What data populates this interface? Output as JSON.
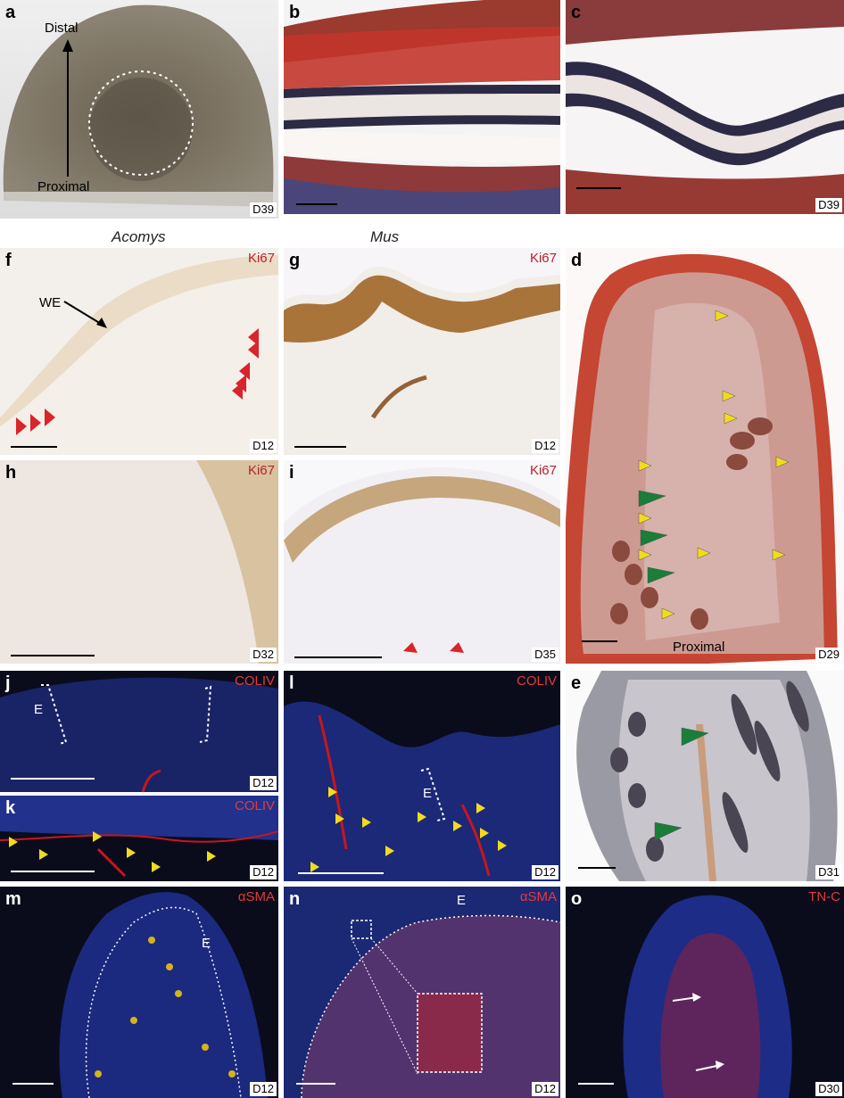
{
  "headers": {
    "acomys": "Acomys",
    "mus": "Mus"
  },
  "panels": {
    "a": {
      "letter": "a",
      "day": "D39",
      "distal": "Distal",
      "proximal": "Proximal"
    },
    "b": {
      "letter": "b"
    },
    "c": {
      "letter": "c",
      "day": "D39"
    },
    "f": {
      "letter": "f",
      "stain": "Ki67",
      "day": "D12",
      "annotation": "WE"
    },
    "g": {
      "letter": "g",
      "stain": "Ki67",
      "day": "D12"
    },
    "d": {
      "letter": "d",
      "day": "D29",
      "proximal": "Proximal"
    },
    "h": {
      "letter": "h",
      "stain": "Ki67",
      "day": "D32"
    },
    "i": {
      "letter": "i",
      "stain": "Ki67",
      "day": "D35"
    },
    "j": {
      "letter": "j",
      "stain": "COLIV",
      "day": "D12",
      "annotation": "E"
    },
    "k": {
      "letter": "k",
      "stain": "COLIV",
      "day": "D12"
    },
    "l": {
      "letter": "l",
      "stain": "COLIV",
      "day": "D12",
      "annotation": "E"
    },
    "e": {
      "letter": "e",
      "day": "D31"
    },
    "m": {
      "letter": "m",
      "stain": "αSMA",
      "day": "D12",
      "annotation": "E"
    },
    "n": {
      "letter": "n",
      "stain": "αSMA",
      "day": "D12",
      "annotation": "E"
    },
    "o": {
      "letter": "o",
      "stain": "TN-C",
      "day": "D30"
    }
  },
  "colors": {
    "stain_red": "#c8161d",
    "arrow_red": "#d8242a",
    "arrow_yellow": "#f1dc1c",
    "arrow_green": "#1b7d3a",
    "fluor_bg": "#0a0c1c"
  }
}
